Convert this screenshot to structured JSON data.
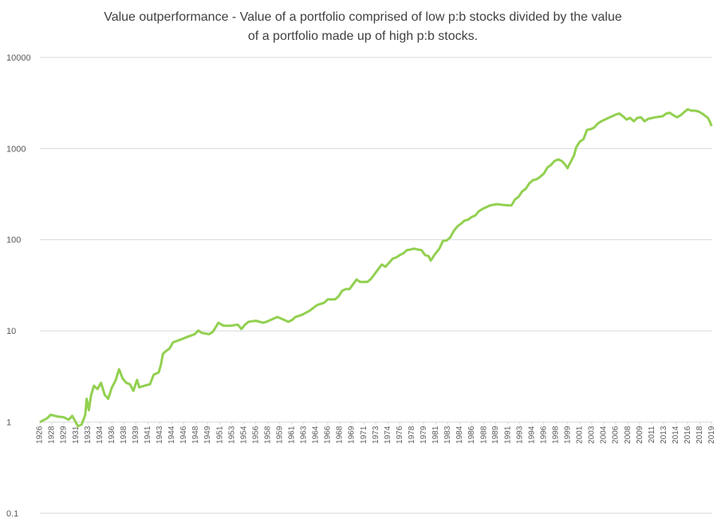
{
  "chart_data": {
    "type": "line",
    "title": [
      "Value outperformance - Value of a portfolio comprised of low p:b stocks divided by the value",
      "of a portfolio made up of high p:b stocks."
    ],
    "log_scale_y": true,
    "grid": true,
    "xaxis_at": 1,
    "ylim": [
      0.1,
      10000
    ],
    "yticks": [
      0.1,
      1,
      10,
      100,
      1000,
      10000
    ],
    "xlim": [
      1926.5,
      2019.9
    ],
    "xticks": [
      {
        "value": 1926.5,
        "label": "1926"
      },
      {
        "value": 1928.17,
        "label": "1928"
      },
      {
        "value": 1929.83,
        "label": "1929"
      },
      {
        "value": 1931.5,
        "label": "1931"
      },
      {
        "value": 1933.17,
        "label": "1933"
      },
      {
        "value": 1934.83,
        "label": "1934"
      },
      {
        "value": 1936.5,
        "label": "1936"
      },
      {
        "value": 1938.17,
        "label": "1938"
      },
      {
        "value": 1939.83,
        "label": "1939"
      },
      {
        "value": 1941.5,
        "label": "1941"
      },
      {
        "value": 1943.17,
        "label": "1943"
      },
      {
        "value": 1944.83,
        "label": "1944"
      },
      {
        "value": 1946.5,
        "label": "1946"
      },
      {
        "value": 1948.17,
        "label": "1948"
      },
      {
        "value": 1949.83,
        "label": "1949"
      },
      {
        "value": 1951.5,
        "label": "1951"
      },
      {
        "value": 1953.17,
        "label": "1953"
      },
      {
        "value": 1954.83,
        "label": "1954"
      },
      {
        "value": 1956.5,
        "label": "1956"
      },
      {
        "value": 1958.17,
        "label": "1958"
      },
      {
        "value": 1959.83,
        "label": "1959"
      },
      {
        "value": 1961.5,
        "label": "1961"
      },
      {
        "value": 1963.17,
        "label": "1963"
      },
      {
        "value": 1964.83,
        "label": "1964"
      },
      {
        "value": 1966.5,
        "label": "1966"
      },
      {
        "value": 1968.17,
        "label": "1968"
      },
      {
        "value": 1969.83,
        "label": "1969"
      },
      {
        "value": 1971.5,
        "label": "1971"
      },
      {
        "value": 1973.17,
        "label": "1973"
      },
      {
        "value": 1974.83,
        "label": "1974"
      },
      {
        "value": 1976.5,
        "label": "1976"
      },
      {
        "value": 1978.17,
        "label": "1978"
      },
      {
        "value": 1979.83,
        "label": "1979"
      },
      {
        "value": 1981.5,
        "label": "1981"
      },
      {
        "value": 1983.17,
        "label": "1983"
      },
      {
        "value": 1984.83,
        "label": "1984"
      },
      {
        "value": 1986.5,
        "label": "1986"
      },
      {
        "value": 1988.17,
        "label": "1988"
      },
      {
        "value": 1989.83,
        "label": "1989"
      },
      {
        "value": 1991.5,
        "label": "1991"
      },
      {
        "value": 1993.17,
        "label": "1993"
      },
      {
        "value": 1994.83,
        "label": "1994"
      },
      {
        "value": 1996.5,
        "label": "1996"
      },
      {
        "value": 1998.17,
        "label": "1998"
      },
      {
        "value": 1999.83,
        "label": "1999"
      },
      {
        "value": 2001.5,
        "label": "2001"
      },
      {
        "value": 2003.17,
        "label": "2003"
      },
      {
        "value": 2004.83,
        "label": "2004"
      },
      {
        "value": 2006.5,
        "label": "2006"
      },
      {
        "value": 2008.17,
        "label": "2008"
      },
      {
        "value": 2009.83,
        "label": "2009"
      },
      {
        "value": 2011.5,
        "label": "2011"
      },
      {
        "value": 2013.17,
        "label": "2013"
      },
      {
        "value": 2014.83,
        "label": "2014"
      },
      {
        "value": 2016.5,
        "label": "2016"
      },
      {
        "value": 2018.17,
        "label": "2018"
      },
      {
        "value": 2019.83,
        "label": "2019"
      }
    ],
    "x": [
      1926.5,
      1927.5,
      1928,
      1929,
      1929.8,
      1930.5,
      1931,
      1931.8,
      1932.3,
      1932.5,
      1932.8,
      1933,
      1933.3,
      1933.6,
      1934,
      1934.5,
      1935,
      1935.5,
      1936,
      1936.5,
      1937,
      1937.5,
      1938,
      1938.5,
      1939,
      1939.5,
      1940,
      1940.3,
      1941,
      1941.8,
      1942.3,
      1943,
      1943.3,
      1943.6,
      1944,
      1944.5,
      1945,
      1946,
      1947,
      1948,
      1948.5,
      1949,
      1950,
      1950.5,
      1951,
      1951.3,
      1952,
      1953,
      1954,
      1954.5,
      1955,
      1955.5,
      1956.5,
      1957.5,
      1958,
      1959,
      1959.5,
      1960,
      1961,
      1961.5,
      1962,
      1963,
      1964,
      1965,
      1966,
      1966.5,
      1967.5,
      1968,
      1968.5,
      1969,
      1969.5,
      1970,
      1970.5,
      1971,
      1972,
      1972.5,
      1973,
      1973.5,
      1974,
      1974.5,
      1975,
      1975.5,
      1976,
      1976.5,
      1977,
      1977.5,
      1978,
      1978.5,
      1979,
      1979.5,
      1980,
      1980.5,
      1980.8,
      1981.3,
      1982,
      1982.5,
      1983,
      1983.5,
      1984,
      1984.5,
      1985,
      1985.5,
      1986,
      1986.5,
      1987,
      1987.5,
      1988,
      1989,
      1990,
      1991,
      1992,
      1992.5,
      1993,
      1993.5,
      1994,
      1994.5,
      1995,
      1995.5,
      1996,
      1996.5,
      1997,
      1997.5,
      1998,
      1998.5,
      1999,
      1999.5,
      1999.8,
      2000.3,
      2000.7,
      2001,
      2001.5,
      2002,
      2002.5,
      2003,
      2003.5,
      2004,
      2004.5,
      2005,
      2005.5,
      2006,
      2006.5,
      2007,
      2007.5,
      2008,
      2008.5,
      2009,
      2009.5,
      2010,
      2010.5,
      2011,
      2012,
      2013,
      2013.5,
      2014,
      2014.5,
      2015,
      2015.5,
      2016,
      2016.5,
      2017,
      2017.5,
      2018,
      2018.5,
      2019,
      2019.3,
      2019.6,
      2019.8
    ],
    "series": [
      {
        "color": "#92d050",
        "values": [
          1.0,
          1.1,
          1.2,
          1.15,
          1.13,
          1.06,
          1.17,
          0.9,
          0.94,
          1.04,
          1.2,
          1.8,
          1.35,
          1.95,
          2.5,
          2.3,
          2.7,
          2.0,
          1.8,
          2.4,
          2.85,
          3.8,
          3.0,
          2.7,
          2.6,
          2.2,
          2.9,
          2.4,
          2.5,
          2.6,
          3.3,
          3.5,
          4.2,
          5.6,
          6.0,
          6.4,
          7.5,
          8.0,
          8.6,
          9.2,
          10.1,
          9.5,
          9.2,
          9.7,
          11.2,
          12.3,
          11.4,
          11.4,
          11.7,
          10.5,
          11.7,
          12.6,
          12.9,
          12.3,
          12.6,
          13.7,
          14.2,
          13.7,
          12.6,
          13.1,
          14.2,
          15.1,
          16.7,
          19.2,
          20.4,
          22.2,
          22.2,
          24,
          27.6,
          28.7,
          28.7,
          32.4,
          36.6,
          34.5,
          34.5,
          37.2,
          42,
          47.5,
          53.5,
          50.5,
          55.7,
          62,
          64,
          68,
          71,
          77,
          78,
          80,
          78,
          77,
          68,
          66,
          59,
          68,
          80,
          97,
          98,
          106,
          125,
          140,
          150,
          162,
          166,
          178,
          185,
          206,
          218,
          237,
          246,
          240,
          237,
          277,
          296,
          339,
          362,
          416,
          451,
          460,
          490,
          530,
          620,
          660,
          730,
          760,
          730,
          660,
          610,
          730,
          840,
          1030,
          1190,
          1260,
          1600,
          1630,
          1700,
          1880,
          1990,
          2080,
          2170,
          2260,
          2360,
          2420,
          2260,
          2080,
          2170,
          1990,
          2170,
          2200,
          1990,
          2120,
          2200,
          2260,
          2420,
          2470,
          2320,
          2200,
          2320,
          2510,
          2700,
          2600,
          2600,
          2550,
          2420,
          2260,
          2170,
          1950,
          1760
        ]
      }
    ]
  }
}
